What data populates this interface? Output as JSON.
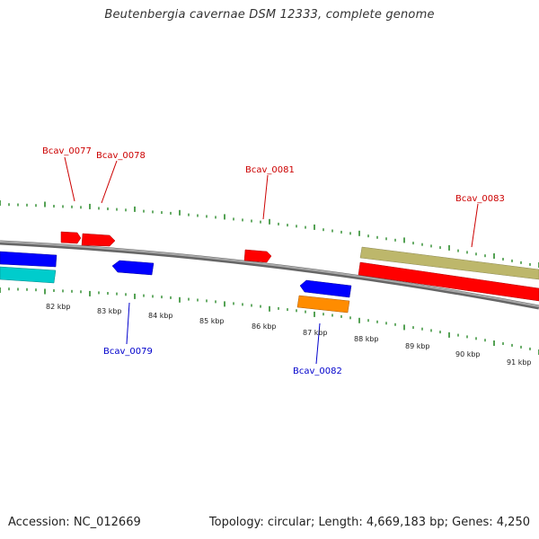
{
  "title": "Beutenbergia cavernae DSM 12333, complete genome",
  "footer": {
    "accession": "Accession: NC_012669",
    "stats": "Topology: circular; Length: 4,669,183 bp; Genes: 4,250"
  },
  "colors": {
    "forward_gene": "#ff0000",
    "reverse_gene": "#0000ff",
    "cyan_gene": "#00cccc",
    "orange_gene": "#ff8c00",
    "khaki_gene": "#bdb76b",
    "tick_green": "#2a8a2a",
    "backbone": "#888888",
    "forward_label": "#cc0000",
    "reverse_label": "#0000cc"
  },
  "ruler_labels": [
    "82 kbp",
    "83 kbp",
    "84 kbp",
    "85 kbp",
    "86 kbp",
    "87 kbp",
    "88 kbp",
    "89 kbp",
    "90 kbp",
    "91 kbp"
  ],
  "forward_gene_labels": [
    "Bcav_0077",
    "Bcav_0078",
    "Bcav_0081",
    "Bcav_0083"
  ],
  "reverse_gene_labels": [
    "Bcav_0079",
    "Bcav_0082"
  ]
}
